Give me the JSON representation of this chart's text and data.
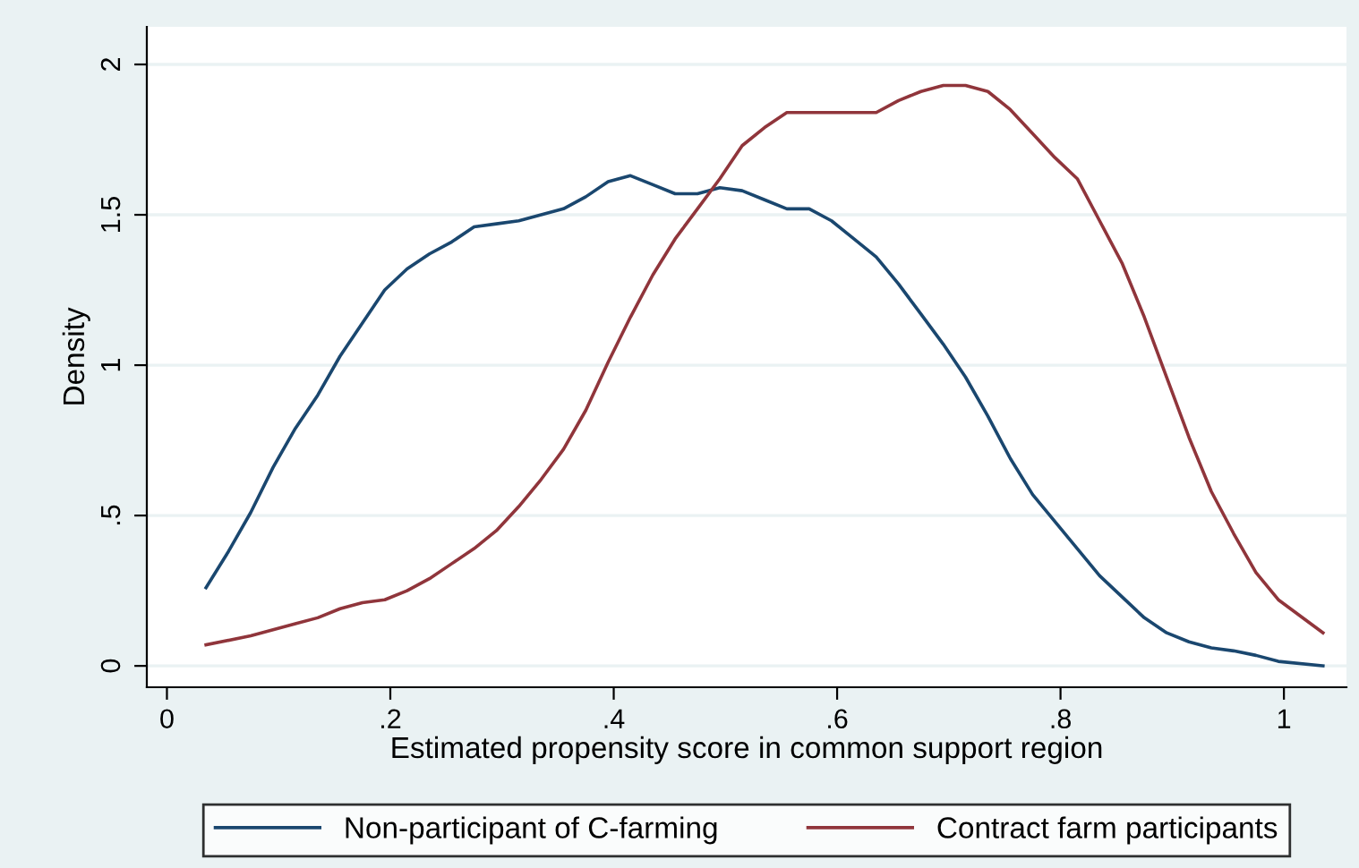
{
  "chart_data": {
    "type": "line",
    "xlabel": "Estimated propensity score in common support region",
    "ylabel": "Density",
    "xlim": [
      -0.018,
      1.056
    ],
    "xticks": [
      {
        "value": 0,
        "label": "0"
      },
      {
        "value": 0.2,
        "label": ".2"
      },
      {
        "value": 0.4,
        "label": ".4"
      },
      {
        "value": 0.6,
        "label": ".6"
      },
      {
        "value": 0.8,
        "label": ".8"
      },
      {
        "value": 1,
        "label": "1"
      }
    ],
    "ylim": [
      -0.071,
      2.125
    ],
    "yticks": [
      {
        "value": 0,
        "label": "0"
      },
      {
        "value": 0.5,
        "label": ".5"
      },
      {
        "value": 1,
        "label": "1"
      },
      {
        "value": 1.5,
        "label": "1.5"
      },
      {
        "value": 2,
        "label": "2"
      }
    ],
    "grid": "y",
    "legend": "bottom",
    "marker": "none",
    "line_style": "solid",
    "series": [
      {
        "name": "Non-participant of C-farming",
        "color": "#1a476f",
        "x": [
          0.035,
          0.055,
          0.075,
          0.095,
          0.115,
          0.135,
          0.155,
          0.175,
          0.195,
          0.215,
          0.235,
          0.255,
          0.275,
          0.295,
          0.315,
          0.335,
          0.355,
          0.375,
          0.395,
          0.415,
          0.435,
          0.455,
          0.475,
          0.495,
          0.515,
          0.535,
          0.555,
          0.575,
          0.595,
          0.615,
          0.635,
          0.655,
          0.675,
          0.695,
          0.715,
          0.735,
          0.755,
          0.775,
          0.795,
          0.815,
          0.835,
          0.855,
          0.875,
          0.895,
          0.915,
          0.935,
          0.955,
          0.975,
          0.995,
          1.035
        ],
        "values": [
          0.26,
          0.38,
          0.51,
          0.66,
          0.79,
          0.9,
          1.03,
          1.14,
          1.25,
          1.32,
          1.37,
          1.41,
          1.46,
          1.47,
          1.48,
          1.5,
          1.52,
          1.56,
          1.61,
          1.63,
          1.6,
          1.57,
          1.57,
          1.59,
          1.58,
          1.55,
          1.52,
          1.52,
          1.48,
          1.42,
          1.36,
          1.27,
          1.17,
          1.07,
          0.96,
          0.83,
          0.69,
          0.57,
          0.48,
          0.39,
          0.3,
          0.23,
          0.16,
          0.11,
          0.08,
          0.06,
          0.05,
          0.035,
          0.015,
          0.0
        ]
      },
      {
        "name": "Contract farm participants",
        "color": "#90353b",
        "x": [
          0.035,
          0.075,
          0.115,
          0.135,
          0.155,
          0.175,
          0.195,
          0.215,
          0.235,
          0.255,
          0.275,
          0.295,
          0.315,
          0.335,
          0.355,
          0.375,
          0.395,
          0.415,
          0.435,
          0.455,
          0.475,
          0.495,
          0.515,
          0.535,
          0.555,
          0.575,
          0.595,
          0.615,
          0.635,
          0.655,
          0.675,
          0.695,
          0.715,
          0.735,
          0.755,
          0.775,
          0.795,
          0.815,
          0.835,
          0.855,
          0.875,
          0.895,
          0.915,
          0.935,
          0.955,
          0.975,
          0.995,
          1.035
        ],
        "values": [
          0.07,
          0.1,
          0.14,
          0.16,
          0.19,
          0.21,
          0.22,
          0.25,
          0.29,
          0.34,
          0.39,
          0.45,
          0.53,
          0.62,
          0.72,
          0.85,
          1.01,
          1.16,
          1.3,
          1.42,
          1.52,
          1.62,
          1.73,
          1.79,
          1.84,
          1.84,
          1.84,
          1.84,
          1.84,
          1.88,
          1.91,
          1.93,
          1.93,
          1.91,
          1.85,
          1.77,
          1.69,
          1.62,
          1.48,
          1.34,
          1.16,
          0.96,
          0.76,
          0.58,
          0.44,
          0.31,
          0.22,
          0.11
        ]
      }
    ]
  }
}
